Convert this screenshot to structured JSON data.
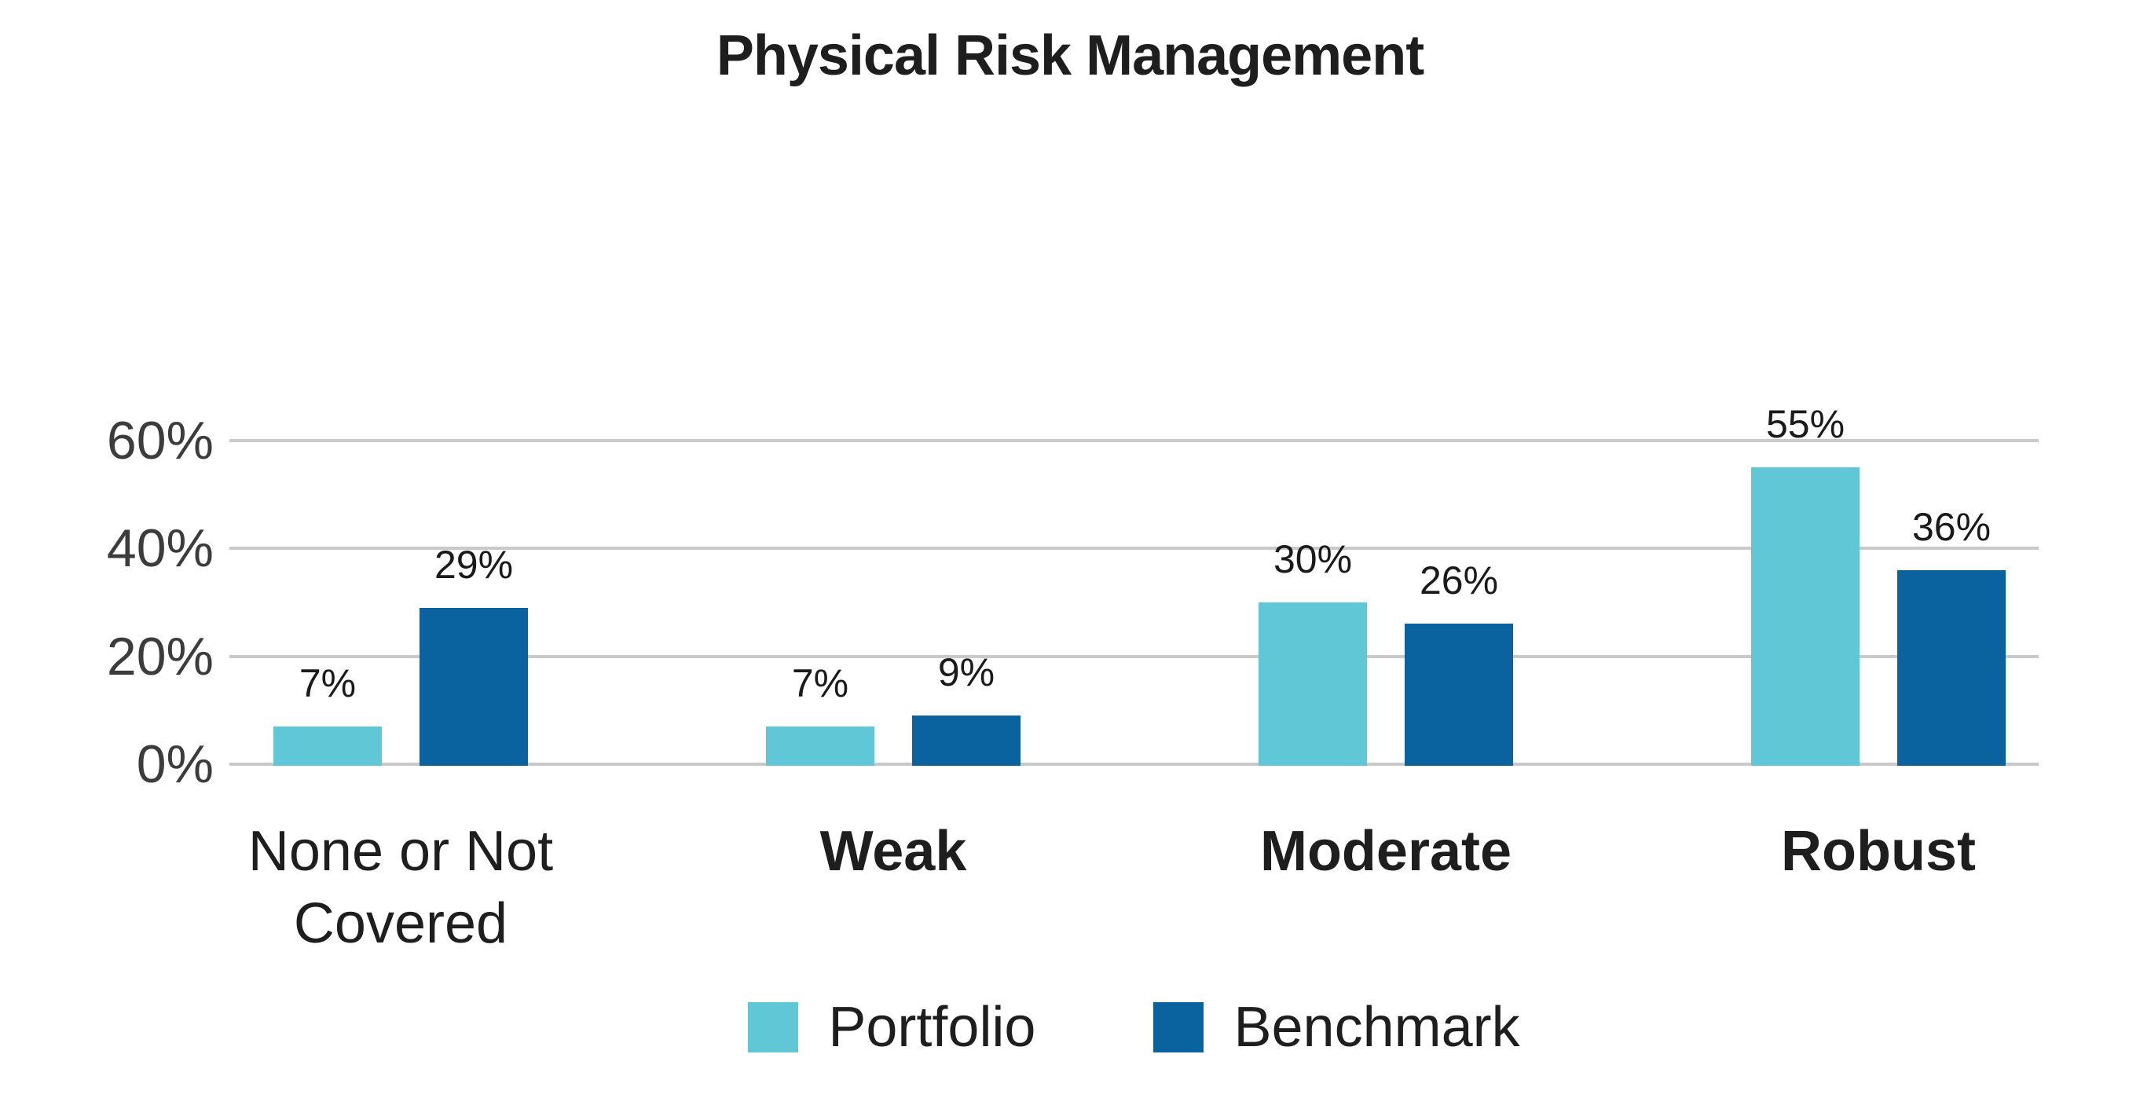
{
  "page": {
    "background": "#FFFFFF"
  },
  "header": {
    "title": "Physical Risk Management"
  },
  "chart_data": {
    "type": "bar",
    "title": "Physical Risk Management",
    "categories": [
      "None or Not Covered",
      "Weak",
      "Moderate",
      "Robust"
    ],
    "category_emphasis": [
      false,
      true,
      true,
      true
    ],
    "series": [
      {
        "name": "Portfolio",
        "color": "#5FC7D6",
        "values": [
          7,
          7,
          30,
          55
        ]
      },
      {
        "name": "Benchmark",
        "color": "#0A629E",
        "values": [
          29,
          9,
          26,
          36
        ]
      }
    ],
    "value_label_suffix": "%",
    "xlabel": "",
    "ylabel": "",
    "ylim": [
      0,
      60
    ],
    "yticks": [
      0,
      20,
      40,
      60
    ],
    "ytick_labels": [
      "0%",
      "20%",
      "40%",
      "60%"
    ],
    "grid": true,
    "gridline_color": "#C9C9C9",
    "legend_position": "bottom",
    "legend": [
      {
        "label": "Portfolio",
        "color": "#5FC7D6"
      },
      {
        "label": "Benchmark",
        "color": "#0A629E"
      }
    ],
    "text_colors": {
      "title": "#1E1E1E",
      "ticks": "#3C3C3C",
      "values": "#1A1A1A",
      "categories": "#1E1E1E"
    }
  }
}
